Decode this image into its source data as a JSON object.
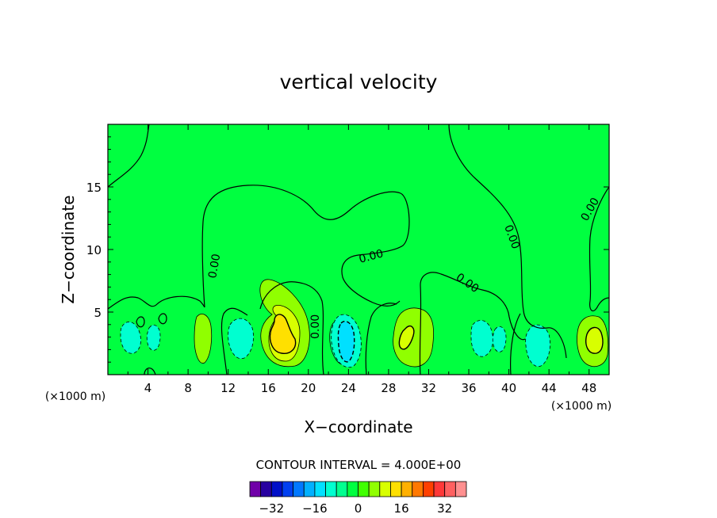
{
  "chart_data": {
    "type": "heatmap",
    "title": "vertical velocity",
    "xlabel": "X−coordinate",
    "ylabel": "Z−coordinate",
    "x_unit_left": "(×1000 m)",
    "x_unit_right": "(×1000 m)",
    "xlim": [
      0,
      50
    ],
    "ylim": [
      0,
      20
    ],
    "x_ticks": [
      4,
      8,
      12,
      16,
      20,
      24,
      28,
      32,
      36,
      40,
      44,
      48
    ],
    "y_ticks": [
      5,
      10,
      15
    ],
    "contour_interval_label": "CONTOUR INTERVAL = 4.000E+00",
    "contour_label": "0.00",
    "colorbar": {
      "ticks": [
        -32,
        -16,
        0,
        16,
        32
      ],
      "tick_labels": [
        "−32",
        "−16",
        "0",
        "16",
        "32"
      ],
      "colors": [
        "#7000a8",
        "#2800a0",
        "#0010c8",
        "#0040f0",
        "#0078ff",
        "#00b0ff",
        "#00e0ff",
        "#00ffd0",
        "#00ff90",
        "#00ff40",
        "#40ff00",
        "#90ff00",
        "#d8ff00",
        "#ffe000",
        "#ffb000",
        "#ff7800",
        "#ff4000",
        "#ff3838",
        "#ff6060",
        "#ff9090"
      ]
    },
    "background_color": "#00ff40",
    "features": [
      {
        "kind": "updraft",
        "x": 17.8,
        "z": 3.0,
        "peak": 14
      },
      {
        "kind": "updraft",
        "x": 29.8,
        "z": 2.8,
        "peak": 10
      },
      {
        "kind": "updraft",
        "x": 48.0,
        "z": 2.7,
        "peak": 12
      },
      {
        "kind": "downdraft",
        "x": 23.7,
        "z": 2.6,
        "peak": -10
      },
      {
        "kind": "downdraft",
        "x": 14.0,
        "z": 2.5,
        "peak": -5
      },
      {
        "kind": "downdraft",
        "x": 2.0,
        "z": 2.3,
        "peak": -4
      },
      {
        "kind": "downdraft",
        "x": 37.5,
        "z": 2.5,
        "peak": -5
      },
      {
        "kind": "downdraft",
        "x": 43.5,
        "z": 2.2,
        "peak": -5
      }
    ]
  }
}
